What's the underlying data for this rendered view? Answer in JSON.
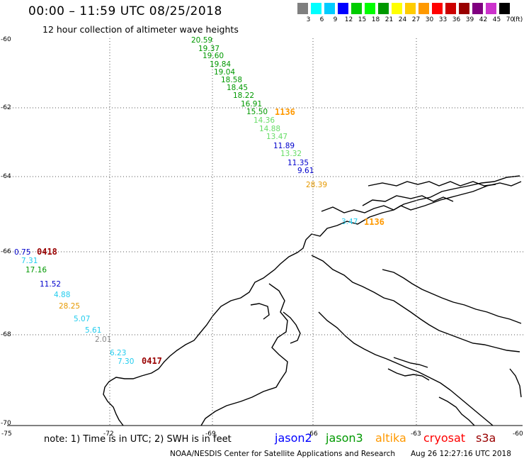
{
  "title": "00:00 – 11:59 UTC 08/25/2018",
  "subtitle": "12 hour collection of altimeter wave heights",
  "scale": {
    "colors": [
      "#7f7f7f",
      "#00ffff",
      "#00ccff",
      "#0000ff",
      "#00cc00",
      "#00ff00",
      "#009900",
      "#ffff00",
      "#ffcc00",
      "#ff9900",
      "#ff0000",
      "#cc0000",
      "#990000",
      "#800080",
      "#cc33cc",
      "#000000"
    ],
    "labels": [
      "3",
      "6",
      "9",
      "12",
      "15",
      "18",
      "21",
      "24",
      "27",
      "30",
      "33",
      "36",
      "39",
      "42",
      "45",
      "70",
      "(ft)"
    ]
  },
  "lat_labels": [
    "-60",
    "-62",
    "-64",
    "-66",
    "-68",
    "-70"
  ],
  "lon_labels": [
    "-75",
    "-72",
    "-69",
    "-66",
    "-63",
    "-60"
  ],
  "measurements": [
    {
      "value": "20.59",
      "color": "#009900"
    },
    {
      "value": "19.37",
      "color": "#009900"
    },
    {
      "value": "19.60",
      "color": "#009900"
    },
    {
      "value": "19.84",
      "color": "#009900"
    },
    {
      "value": "19.04",
      "color": "#009900"
    },
    {
      "value": "18.58",
      "color": "#009900"
    },
    {
      "value": "18.45",
      "color": "#009900"
    },
    {
      "value": "18.22",
      "color": "#009900"
    },
    {
      "value": "16.91",
      "color": "#009900"
    },
    {
      "value": "15.50",
      "color": "#009900"
    },
    {
      "value": "14.36",
      "color": "#66dd66"
    },
    {
      "value": "14.88",
      "color": "#66dd66"
    },
    {
      "value": "13.47",
      "color": "#66dd66"
    },
    {
      "value": "11.89",
      "color": "#0000cc"
    },
    {
      "value": "13.32",
      "color": "#66dd66"
    },
    {
      "value": "11.35",
      "color": "#0000cc"
    },
    {
      "value": "9.61",
      "color": "#0000cc"
    },
    {
      "value": "28.39",
      "color": "#e69900"
    },
    {
      "value": "3.47",
      "color": "#22ccee"
    },
    {
      "value": "0.75",
      "color": "#0000cc"
    },
    {
      "value": "7.31",
      "color": "#22ccee"
    },
    {
      "value": "17.16",
      "color": "#009900"
    },
    {
      "value": "11.52",
      "color": "#0000cc"
    },
    {
      "value": "4.88",
      "color": "#22ccee"
    },
    {
      "value": "28.25",
      "color": "#e69900"
    },
    {
      "value": "5.07",
      "color": "#22ccee"
    },
    {
      "value": "5.61",
      "color": "#22ccee"
    },
    {
      "value": "2.01",
      "color": "#888888"
    },
    {
      "value": "6.23",
      "color": "#22ccee"
    },
    {
      "value": "7.30",
      "color": "#22ccee"
    }
  ],
  "time_labels": [
    {
      "value": "1136",
      "color": "#ff9900"
    },
    {
      "value": "1136",
      "color": "#ff9900"
    },
    {
      "value": "0418",
      "color": "#990000"
    },
    {
      "value": "0417",
      "color": "#990000"
    }
  ],
  "note": "note:  1) Time is in UTC;  2) SWH is in feet",
  "legend": [
    {
      "name": "jason2",
      "color": "#0000ff"
    },
    {
      "name": "jason3",
      "color": "#009900"
    },
    {
      "name": "altika",
      "color": "#ff9900"
    },
    {
      "name": "cryosat",
      "color": "#ff0000"
    },
    {
      "name": "s3a",
      "color": "#990000"
    }
  ],
  "credit": "NOAA/NESDIS Center for Satellite Applications and Research",
  "timestamp": "Aug 26 12:27:16 UTC 2018"
}
